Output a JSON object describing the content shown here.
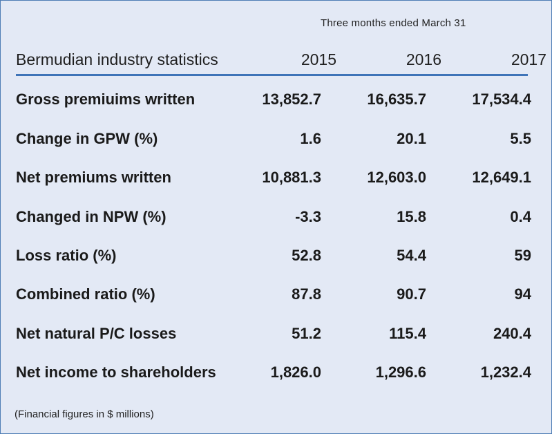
{
  "period_label": "Three months ended March 31",
  "table": {
    "title": "Bermudian industry statistics",
    "years": [
      "2015",
      "2016",
      "2017"
    ],
    "rows": [
      {
        "label": "Gross premiuims written",
        "values": [
          "13,852.7",
          "16,635.7",
          "17,534.4"
        ]
      },
      {
        "label": "Change in GPW (%)",
        "values": [
          "1.6",
          "20.1",
          "5.5"
        ]
      },
      {
        "label": "Net premiums written",
        "values": [
          "10,881.3",
          "12,603.0",
          "12,649.1"
        ]
      },
      {
        "label": "Changed in NPW (%)",
        "values": [
          "-3.3",
          "15.8",
          "0.4"
        ]
      },
      {
        "label": "Loss ratio (%)",
        "values": [
          "52.8",
          "54.4",
          "59"
        ]
      },
      {
        "label": "Combined ratio (%)",
        "values": [
          "87.8",
          "90.7",
          "94"
        ]
      },
      {
        "label": "Net natural P/C losses",
        "values": [
          "51.2",
          "115.4",
          "240.4"
        ]
      },
      {
        "label": "Net income to shareholders",
        "values": [
          "1,826.0",
          "1,296.6",
          "1,232.4"
        ]
      }
    ]
  },
  "footnote": "(Financial figures in $ millions)",
  "colors": {
    "background": "#e3e9f5",
    "accent_rule": "#3f74b8",
    "border": "#4e7db5"
  }
}
